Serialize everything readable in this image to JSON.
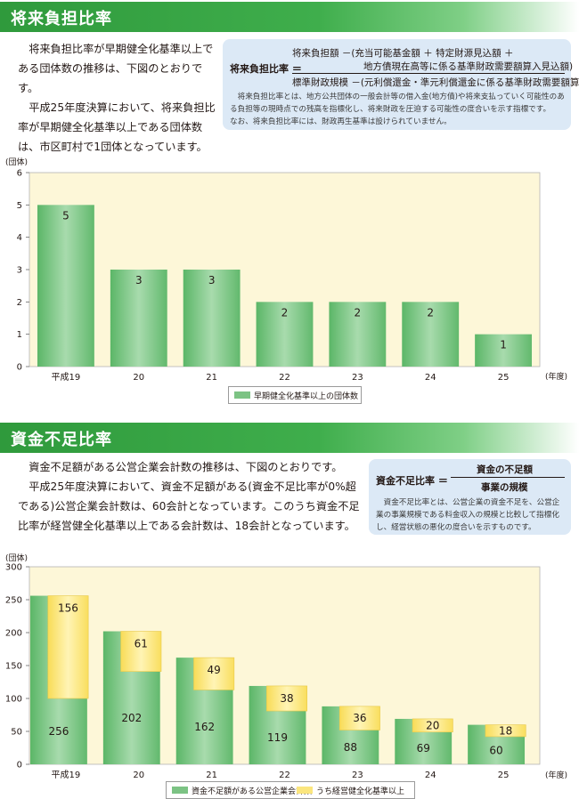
{
  "section1": {
    "title": "将来負担比率",
    "paragraphs": [
      "将来負担比率が早期健全化基準以上である団体数の推移は、下図のとおりです。",
      "平成25年度決算において、将来負担比率が早期健全化基準以上である団体数は、市区町村で1団体となっています。"
    ],
    "formula": {
      "label": "将来負担比率 ＝",
      "numerator_1": "将来負担額 －(充当可能基金額 ＋ 特定財源見込額 ＋",
      "numerator_2": "地方債現在高等に係る基準財政需要額算入見込額)",
      "denominator": "標準財政規模 －(元利償還金・準元利償還金に係る基準財政需要額算入額)",
      "note_1": "将来負担比率とは、地方公共団体の一般会計等の借入金(地方債)や将来支払っていく可能性のある負担等の現時点での残高を指標化し、将来財政を圧迫する可能性の度合いを示す指標です。",
      "note_2": "なお、将来負担比率には、財政再生基準は設けられていません。"
    }
  },
  "section2": {
    "title": "資金不足比率",
    "paragraphs": [
      "資金不足額がある公営企業会計数の推移は、下図のとおりです。",
      "平成25年度決算において、資金不足額がある(資金不足比率が0%超である)公営企業会計数は、60会計となっています。このうち資金不足比率が経営健全化基準以上である会計数は、18会計となっています。"
    ],
    "formula": {
      "label": "資金不足比率 ＝",
      "numerator": "資金の不足額",
      "denominator": "事業の規模",
      "note": "資金不足比率とは、公営企業の資金不足を、公営企業の事業規模である料金収入の規模と比較して指標化し、経営状態の悪化の度合いを示すものです。"
    }
  },
  "chart_data": [
    {
      "type": "bar",
      "title": "",
      "unit_label": "(団体)",
      "x_unit_label": "(年度)",
      "categories": [
        "平成19",
        "20",
        "21",
        "22",
        "23",
        "24",
        "25"
      ],
      "series": [
        {
          "name": "早期健全化基準以上の団体数",
          "values": [
            5,
            3,
            3,
            2,
            2,
            2,
            1
          ],
          "color": "#7cc384"
        }
      ],
      "ylim": [
        0,
        6
      ],
      "yticks": [
        0,
        1,
        2,
        3,
        4,
        5,
        6
      ],
      "grid": false,
      "background": "#fdf7d8",
      "legend": "bottom-center"
    },
    {
      "type": "bar",
      "title": "",
      "unit_label": "(団体)",
      "x_unit_label": "(年度)",
      "categories": [
        "平成19",
        "20",
        "21",
        "22",
        "23",
        "24",
        "25"
      ],
      "series": [
        {
          "name": "資金不足額がある公営企業会計数",
          "values": [
            256,
            202,
            162,
            119,
            88,
            69,
            60
          ],
          "color": "#7cc384"
        },
        {
          "name": "うち経営健全化基準以上",
          "values": [
            156,
            61,
            49,
            38,
            36,
            20,
            18
          ],
          "color": "#fbe67e"
        }
      ],
      "ylim": [
        0,
        300
      ],
      "yticks": [
        0,
        50,
        100,
        150,
        200,
        250,
        300
      ],
      "grid": false,
      "background": "#fdf7d8",
      "legend": "bottom-center"
    }
  ]
}
